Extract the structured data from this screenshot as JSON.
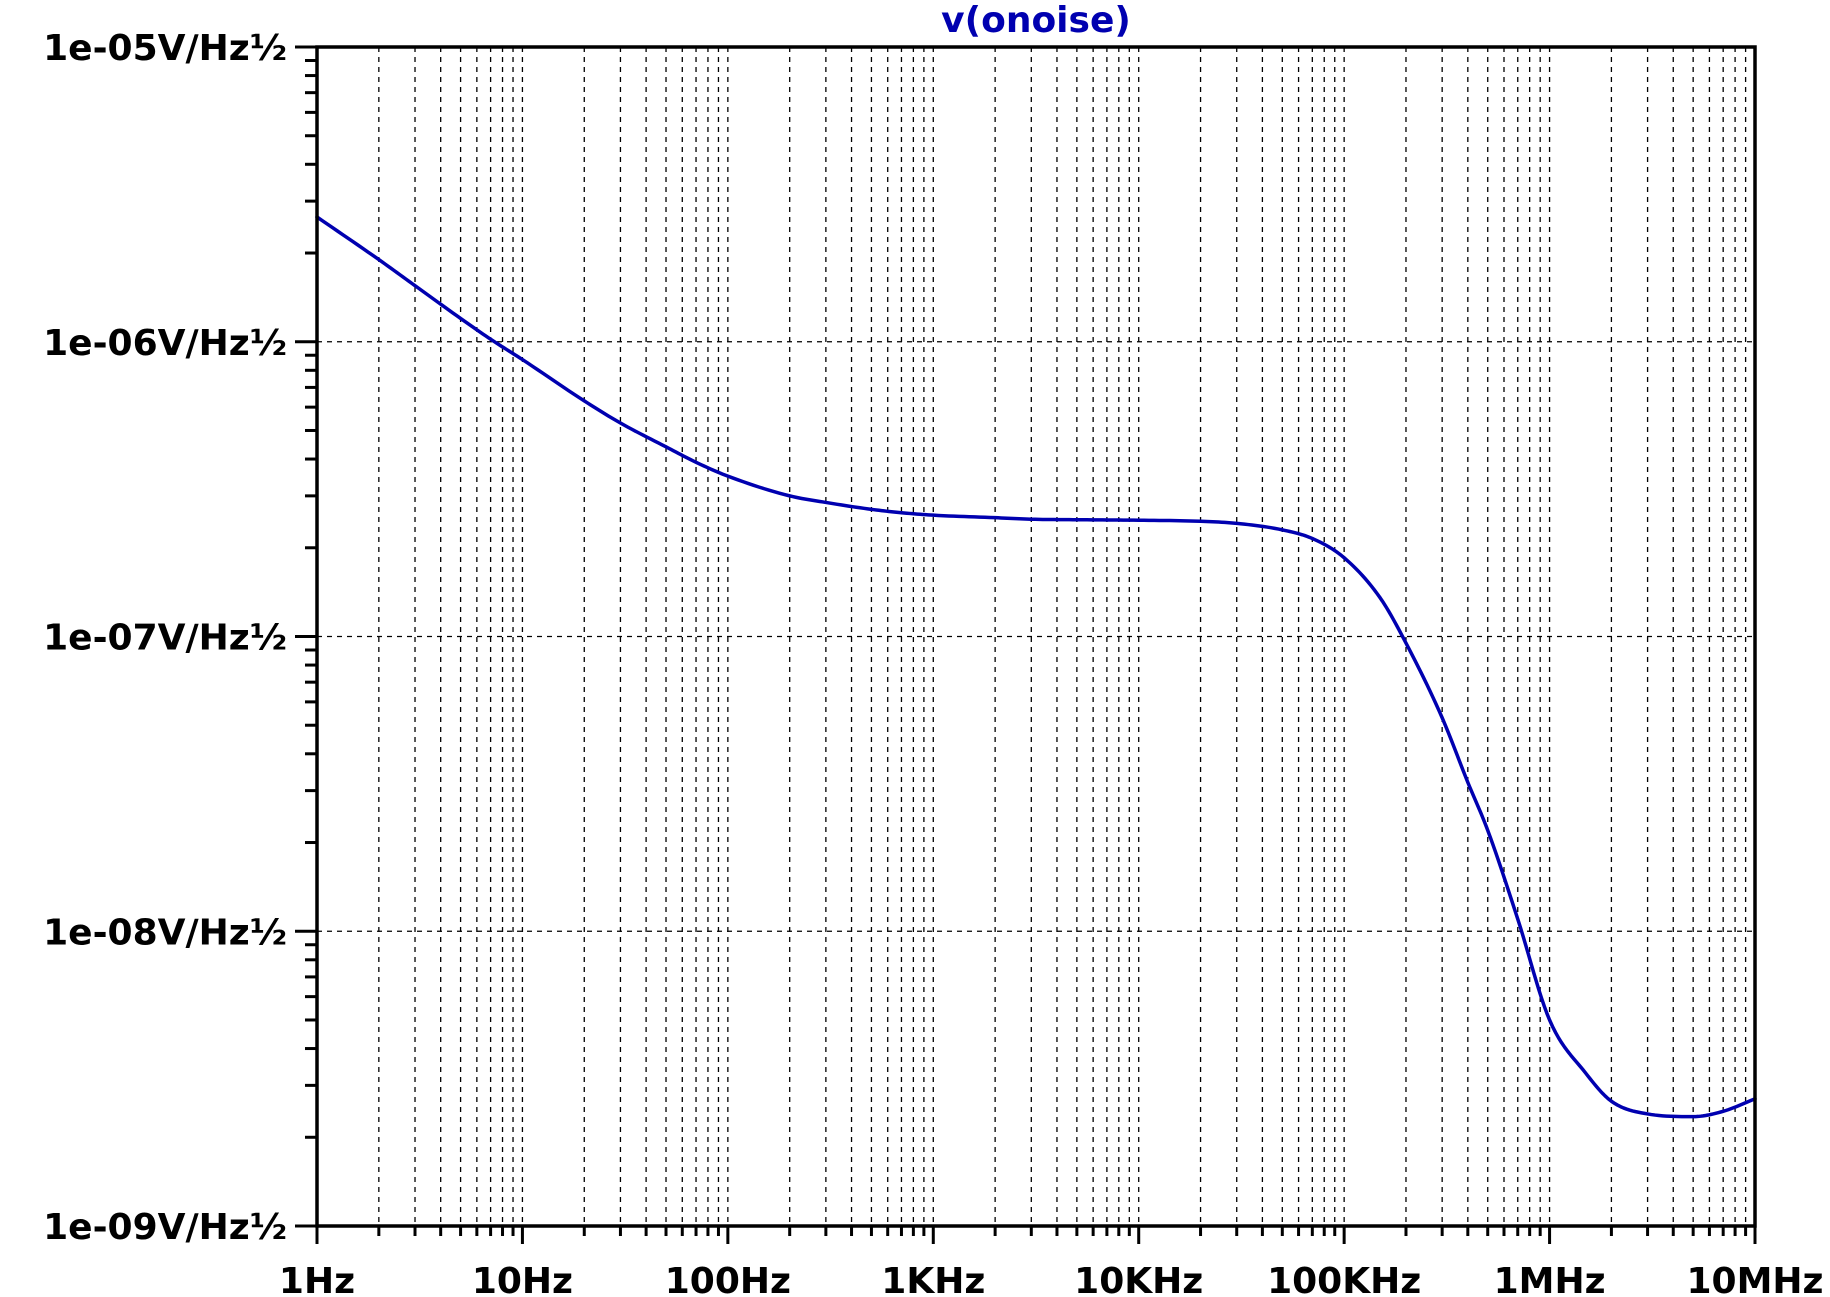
{
  "chart_data": {
    "type": "line",
    "title": "v(onoise)",
    "xlabel": "",
    "ylabel": "",
    "x_scale": "log",
    "y_scale": "log",
    "xlim": [
      1,
      10000000
    ],
    "ylim": [
      1e-09,
      1e-05
    ],
    "grid": true,
    "x_tick_values": [
      1,
      10,
      100,
      1000,
      10000,
      100000,
      1000000,
      10000000
    ],
    "x_tick_labels": [
      "1Hz",
      "10Hz",
      "100Hz",
      "1KHz",
      "10KHz",
      "100KHz",
      "1MHz",
      "10MHz"
    ],
    "y_tick_values": [
      1e-05,
      1e-06,
      1e-07,
      1e-08,
      1e-09
    ],
    "y_tick_labels": [
      "1e-05V/Hz½",
      "1e-06V/Hz½",
      "1e-07V/Hz½",
      "1e-08V/Hz½",
      "1e-09V/Hz½"
    ],
    "series": [
      {
        "name": "v(onoise)",
        "color": "#0000b0",
        "x": [
          1,
          2,
          3,
          5,
          7,
          10,
          20,
          30,
          50,
          70,
          100,
          200,
          300,
          500,
          700,
          1000,
          2000,
          3000,
          5000,
          10000,
          20000,
          30000,
          50000,
          70000,
          100000,
          150000,
          200000,
          300000,
          400000,
          500000,
          700000,
          1000000,
          1500000,
          2000000,
          3000000,
          5000000,
          7000000,
          10000000
        ],
        "y": [
          2.65e-06,
          1.9e-06,
          1.55e-06,
          1.2e-06,
          1.02e-06,
          8.7e-07,
          6.3e-07,
          5.3e-07,
          4.4e-07,
          3.9e-07,
          3.5e-07,
          3e-07,
          2.85e-07,
          2.7e-07,
          2.63e-07,
          2.58e-07,
          2.53e-07,
          2.5e-07,
          2.49e-07,
          2.48e-07,
          2.46e-07,
          2.42e-07,
          2.3e-07,
          2.15e-07,
          1.85e-07,
          1.35e-07,
          9.5e-08,
          5.3e-08,
          3.2e-08,
          2.2e-08,
          1.1e-08,
          5e-09,
          3.3e-09,
          2.65e-09,
          2.4e-09,
          2.35e-09,
          2.45e-09,
          2.7e-09
        ]
      }
    ]
  }
}
